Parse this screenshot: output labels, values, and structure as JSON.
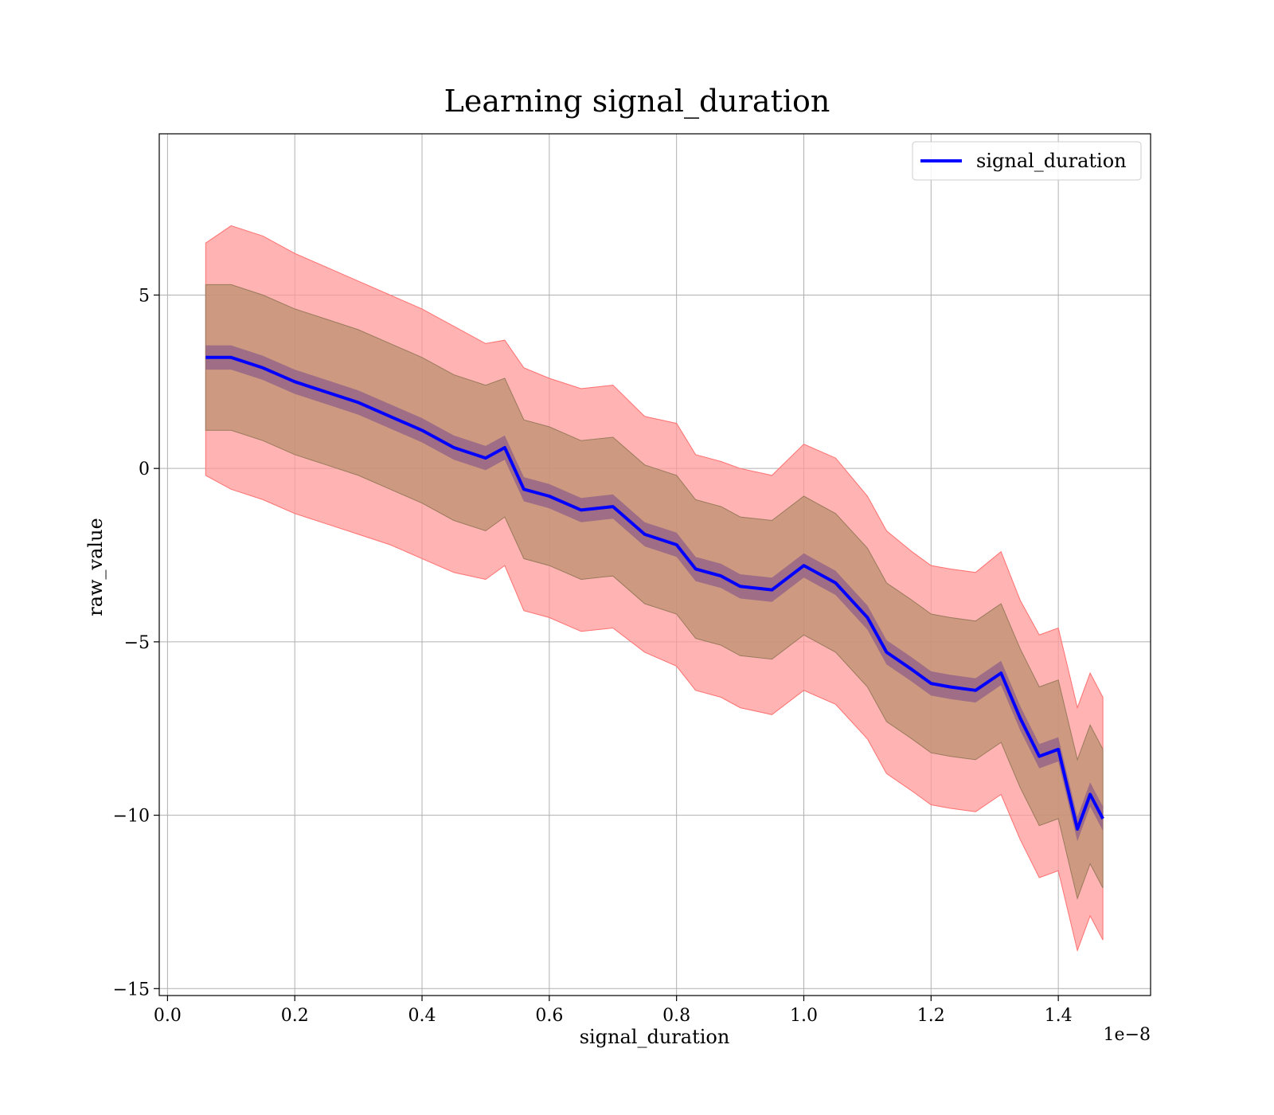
{
  "chart_data": {
    "type": "line",
    "title": "Learning signal_duration",
    "xlabel": "signal_duration",
    "ylabel": "raw_value",
    "x_offset_label": "1e−8",
    "xlim": [
      -0.013,
      1.545
    ],
    "ylim": [
      -15.2,
      9.65
    ],
    "x_ticks": [
      0.0,
      0.2,
      0.4,
      0.6,
      0.8,
      1.0,
      1.2,
      1.4
    ],
    "x_tick_labels": [
      "0.0",
      "0.2",
      "0.4",
      "0.6",
      "0.8",
      "1.0",
      "1.2",
      "1.4"
    ],
    "y_ticks": [
      5,
      0,
      -5,
      -10,
      -15
    ],
    "y_tick_labels": [
      "5",
      "0",
      "−5",
      "−10",
      "−15"
    ],
    "grid": true,
    "legend": {
      "position": "top-right"
    },
    "colors": {
      "line": "#0000ff",
      "outer_band": "#ff9999",
      "inner_band": "#b8906c",
      "tight_band": "#7a4a8a"
    },
    "series": [
      {
        "name": "signal_duration",
        "x": [
          0.06,
          0.1,
          0.15,
          0.2,
          0.25,
          0.3,
          0.35,
          0.4,
          0.45,
          0.5,
          0.53,
          0.56,
          0.6,
          0.65,
          0.7,
          0.75,
          0.8,
          0.83,
          0.87,
          0.9,
          0.95,
          1.0,
          1.05,
          1.1,
          1.13,
          1.17,
          1.2,
          1.23,
          1.27,
          1.31,
          1.34,
          1.37,
          1.4,
          1.43,
          1.45,
          1.47
        ],
        "values": [
          3.2,
          3.2,
          2.9,
          2.5,
          2.2,
          1.9,
          1.5,
          1.1,
          0.6,
          0.3,
          0.6,
          -0.6,
          -0.8,
          -1.2,
          -1.1,
          -1.9,
          -2.2,
          -2.9,
          -3.1,
          -3.4,
          -3.5,
          -2.8,
          -3.3,
          -4.3,
          -5.3,
          -5.8,
          -6.2,
          -6.3,
          -6.4,
          -5.9,
          -7.2,
          -8.3,
          -8.1,
          -10.4,
          -9.4,
          -10.1
        ],
        "outer_band": {
          "upper": [
            6.5,
            7.0,
            6.7,
            6.2,
            5.8,
            5.4,
            5.0,
            4.6,
            4.1,
            3.6,
            3.7,
            2.9,
            2.6,
            2.3,
            2.4,
            1.5,
            1.3,
            0.4,
            0.2,
            0.0,
            -0.2,
            0.7,
            0.3,
            -0.8,
            -1.8,
            -2.4,
            -2.8,
            -2.9,
            -3.0,
            -2.4,
            -3.8,
            -4.8,
            -4.6,
            -6.9,
            -5.9,
            -6.6
          ],
          "lower": [
            -0.2,
            -0.6,
            -0.9,
            -1.3,
            -1.6,
            -1.9,
            -2.2,
            -2.6,
            -3.0,
            -3.2,
            -2.8,
            -4.1,
            -4.3,
            -4.7,
            -4.6,
            -5.3,
            -5.7,
            -6.4,
            -6.6,
            -6.9,
            -7.1,
            -6.4,
            -6.8,
            -7.8,
            -8.8,
            -9.3,
            -9.7,
            -9.8,
            -9.9,
            -9.4,
            -10.7,
            -11.8,
            -11.6,
            -13.9,
            -12.9,
            -13.6
          ]
        },
        "inner_band": {
          "upper": [
            5.3,
            5.3,
            5.0,
            4.6,
            4.3,
            4.0,
            3.6,
            3.2,
            2.7,
            2.4,
            2.6,
            1.4,
            1.2,
            0.8,
            0.9,
            0.1,
            -0.2,
            -0.9,
            -1.1,
            -1.4,
            -1.5,
            -0.8,
            -1.3,
            -2.3,
            -3.3,
            -3.8,
            -4.2,
            -4.3,
            -4.4,
            -3.9,
            -5.2,
            -6.3,
            -6.1,
            -8.4,
            -7.4,
            -8.1
          ],
          "lower": [
            1.1,
            1.1,
            0.8,
            0.4,
            0.1,
            -0.2,
            -0.6,
            -1.0,
            -1.5,
            -1.8,
            -1.4,
            -2.6,
            -2.8,
            -3.2,
            -3.1,
            -3.9,
            -4.2,
            -4.9,
            -5.1,
            -5.4,
            -5.5,
            -4.8,
            -5.3,
            -6.3,
            -7.3,
            -7.8,
            -8.2,
            -8.3,
            -8.4,
            -7.9,
            -9.2,
            -10.3,
            -10.1,
            -12.4,
            -11.4,
            -12.1
          ]
        }
      }
    ]
  }
}
